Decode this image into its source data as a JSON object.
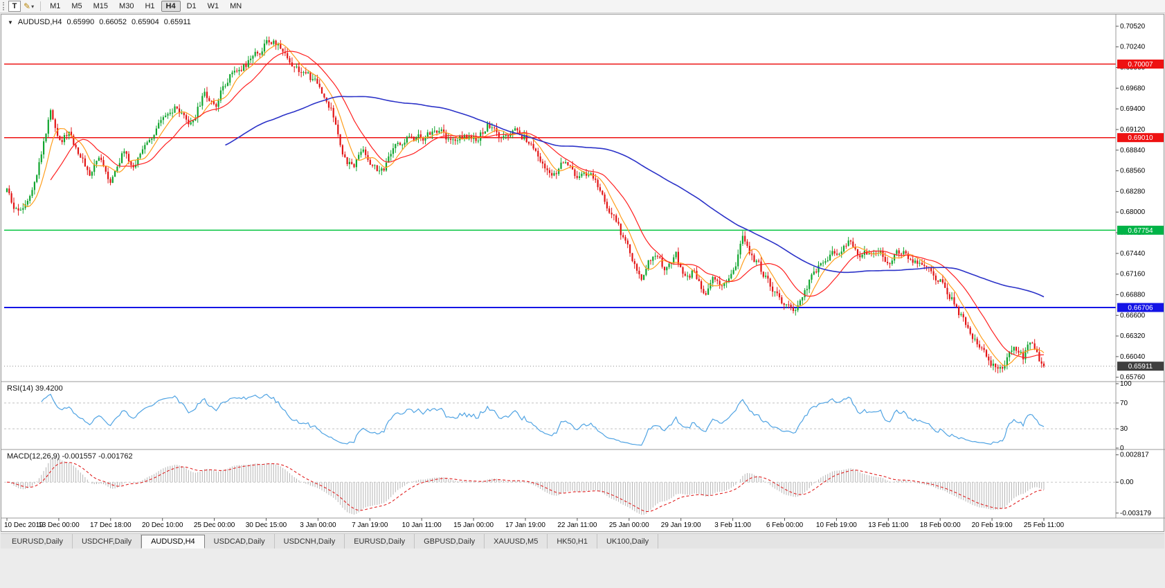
{
  "window": {
    "bg_color": "#ececec",
    "chart_bg": "#ffffff"
  },
  "toolbar": {
    "text_tool_label": "T",
    "draw_icon_glyph": "✎",
    "dropdown_glyph": "▾",
    "timeframes": [
      "M1",
      "M5",
      "M15",
      "M30",
      "H1",
      "H4",
      "D1",
      "W1",
      "MN"
    ],
    "active_timeframe": "H4"
  },
  "tabs": [
    {
      "label": "EURUSD,Daily",
      "active": false
    },
    {
      "label": "USDCHF,Daily",
      "active": false
    },
    {
      "label": "AUDUSD,H4",
      "active": true
    },
    {
      "label": "USDCAD,Daily",
      "active": false
    },
    {
      "label": "USDCNH,Daily",
      "active": false
    },
    {
      "label": "EURUSD,Daily",
      "active": false
    },
    {
      "label": "GBPUSD,Daily",
      "active": false
    },
    {
      "label": "XAUUSD,M5",
      "active": false
    },
    {
      "label": "HK50,H1",
      "active": false
    },
    {
      "label": "UK100,Daily",
      "active": false
    }
  ],
  "chart_data": {
    "type": "candlestick",
    "symbol": "AUDUSD",
    "timeframe": "H4",
    "header": {
      "marker": "▼",
      "symbol_label": "AUDUSD,H4",
      "open": "0.65990",
      "high": "0.66052",
      "low": "0.65904",
      "close": "0.65911"
    },
    "price_axis": {
      "min": 0.6572,
      "max": 0.7066,
      "tick_labels": [
        "0.70520",
        "0.70240",
        "0.69960",
        "0.69680",
        "0.69400",
        "0.69120",
        "0.68840",
        "0.68560",
        "0.68280",
        "0.68000",
        "0.67720",
        "0.67440",
        "0.67160",
        "0.66880",
        "0.66600",
        "0.66320",
        "0.66040",
        "0.65760"
      ]
    },
    "hlines": [
      {
        "price": 0.70007,
        "label": "0.70007",
        "color": "#ee1111",
        "badge": "#ee1111"
      },
      {
        "price": 0.6901,
        "label": "0.69010",
        "color": "#ee1111",
        "badge": "#ee1111"
      },
      {
        "price": 0.67754,
        "label": "0.67754",
        "color": "#00c33c",
        "badge": "#00b347"
      },
      {
        "price": 0.66706,
        "label": "0.66706",
        "color": "#1414e6",
        "badge": "#1414e6"
      }
    ],
    "current_price": {
      "value": 0.65911,
      "label": "0.65911",
      "badge": "#3f3f3f"
    },
    "candles": {
      "count": 452,
      "up_color": "#10a52e",
      "down_color": "#e21414",
      "price_path": [
        [
          0.0,
          0.6827
        ],
        [
          0.008,
          0.6798
        ],
        [
          0.02,
          0.6818
        ],
        [
          0.032,
          0.6872
        ],
        [
          0.042,
          0.6936
        ],
        [
          0.052,
          0.6898
        ],
        [
          0.06,
          0.6908
        ],
        [
          0.07,
          0.6879
        ],
        [
          0.08,
          0.6852
        ],
        [
          0.09,
          0.6876
        ],
        [
          0.1,
          0.6844
        ],
        [
          0.112,
          0.688
        ],
        [
          0.122,
          0.6858
        ],
        [
          0.136,
          0.69
        ],
        [
          0.15,
          0.6922
        ],
        [
          0.163,
          0.694
        ],
        [
          0.176,
          0.6914
        ],
        [
          0.19,
          0.6958
        ],
        [
          0.202,
          0.6948
        ],
        [
          0.214,
          0.6986
        ],
        [
          0.228,
          0.6998
        ],
        [
          0.24,
          0.7012
        ],
        [
          0.252,
          0.7032
        ],
        [
          0.263,
          0.7026
        ],
        [
          0.274,
          0.7004
        ],
        [
          0.287,
          0.6988
        ],
        [
          0.3,
          0.6972
        ],
        [
          0.312,
          0.6942
        ],
        [
          0.322,
          0.6888
        ],
        [
          0.333,
          0.6858
        ],
        [
          0.343,
          0.689
        ],
        [
          0.352,
          0.6862
        ],
        [
          0.363,
          0.6856
        ],
        [
          0.376,
          0.689
        ],
        [
          0.39,
          0.6904
        ],
        [
          0.402,
          0.6898
        ],
        [
          0.414,
          0.6914
        ],
        [
          0.426,
          0.6896
        ],
        [
          0.44,
          0.6906
        ],
        [
          0.452,
          0.6898
        ],
        [
          0.464,
          0.692
        ],
        [
          0.476,
          0.6896
        ],
        [
          0.489,
          0.6908
        ],
        [
          0.5,
          0.6902
        ],
        [
          0.513,
          0.6874
        ],
        [
          0.526,
          0.6852
        ],
        [
          0.539,
          0.687
        ],
        [
          0.551,
          0.6842
        ],
        [
          0.562,
          0.6856
        ],
        [
          0.574,
          0.6818
        ],
        [
          0.587,
          0.6786
        ],
        [
          0.6,
          0.6748
        ],
        [
          0.612,
          0.6706
        ],
        [
          0.623,
          0.6744
        ],
        [
          0.635,
          0.6722
        ],
        [
          0.645,
          0.6744
        ],
        [
          0.653,
          0.6708
        ],
        [
          0.663,
          0.672
        ],
        [
          0.673,
          0.669
        ],
        [
          0.683,
          0.6712
        ],
        [
          0.693,
          0.67
        ],
        [
          0.701,
          0.6716
        ],
        [
          0.709,
          0.6772
        ],
        [
          0.718,
          0.6742
        ],
        [
          0.728,
          0.672
        ],
        [
          0.739,
          0.6698
        ],
        [
          0.751,
          0.667
        ],
        [
          0.761,
          0.666
        ],
        [
          0.773,
          0.6702
        ],
        [
          0.786,
          0.6732
        ],
        [
          0.8,
          0.6746
        ],
        [
          0.812,
          0.6758
        ],
        [
          0.824,
          0.674
        ],
        [
          0.837,
          0.6752
        ],
        [
          0.85,
          0.6732
        ],
        [
          0.862,
          0.6748
        ],
        [
          0.875,
          0.6732
        ],
        [
          0.888,
          0.6718
        ],
        [
          0.9,
          0.6708
        ],
        [
          0.912,
          0.668
        ],
        [
          0.924,
          0.665
        ],
        [
          0.937,
          0.662
        ],
        [
          0.95,
          0.6596
        ],
        [
          0.96,
          0.6586
        ],
        [
          0.97,
          0.6618
        ],
        [
          0.98,
          0.6604
        ],
        [
          0.988,
          0.6628
        ],
        [
          0.995,
          0.66
        ],
        [
          1.0,
          0.6591
        ]
      ]
    },
    "moving_averages": [
      {
        "name": "fast",
        "period": 8,
        "color": "#ff9e1b"
      },
      {
        "name": "medium",
        "period": 20,
        "color": "#ff1f1f"
      },
      {
        "name": "slow",
        "period": 96,
        "color": "#2b32c8"
      }
    ],
    "time_axis": {
      "labels": [
        "10 Dec 2019",
        "13 Dec 00:00",
        "17 Dec 18:00",
        "20 Dec 10:00",
        "25 Dec 00:00",
        "30 Dec 15:00",
        "3 Jan 00:00",
        "7 Jan 19:00",
        "10 Jan 11:00",
        "15 Jan 00:00",
        "17 Jan 19:00",
        "22 Jan 11:00",
        "25 Jan 00:00",
        "29 Jan 19:00",
        "3 Feb 11:00",
        "6 Feb 00:00",
        "10 Feb 19:00",
        "13 Feb 11:00",
        "18 Feb 00:00",
        "20 Feb 19:00",
        "25 Feb 11:00"
      ]
    },
    "rsi": {
      "label": "RSI(14) 39.4200",
      "period": 14,
      "color": "#4fa3e3",
      "levels": [
        {
          "v": 100,
          "label": "100"
        },
        {
          "v": 70,
          "label": "70"
        },
        {
          "v": 30,
          "label": "30"
        },
        {
          "v": 0,
          "label": "0"
        }
      ]
    },
    "macd": {
      "label": "MACD(12,26,9) -0.001557 -0.001762",
      "fast": 12,
      "slow": 26,
      "signal": 9,
      "hist_color": "#b4b4b4",
      "signal_color": "#e02020",
      "ticks": [
        {
          "v": 0.002817,
          "label": "0.002817"
        },
        {
          "v": 0,
          "label": "0.00"
        },
        {
          "v": -0.003179,
          "label": "-0.003179"
        }
      ],
      "range": {
        "min": -0.00355,
        "max": 0.00315
      }
    }
  }
}
